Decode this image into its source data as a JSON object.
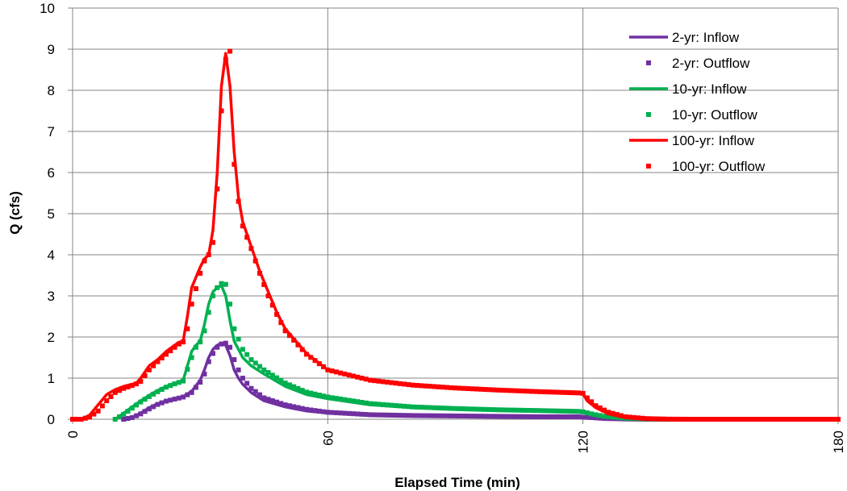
{
  "chart_data": {
    "type": "line",
    "title": "",
    "xlabel": "Elapsed Time (min)",
    "ylabel": "Q (cfs)",
    "xlim": [
      0,
      180
    ],
    "ylim": [
      0,
      10
    ],
    "xticks": [
      0,
      60,
      120,
      180
    ],
    "yticks": [
      0,
      1,
      2,
      3,
      4,
      5,
      6,
      7,
      8,
      9,
      10
    ],
    "grid": true,
    "legend_position": "top-right",
    "legend": [
      "2-yr: Inflow",
      "2-yr: Outflow",
      "10-yr: Inflow",
      "10-yr: Outflow",
      "100-yr: Inflow",
      "100-yr: Outflow"
    ],
    "series": [
      {
        "name": "2-yr: Inflow",
        "style": "line",
        "color": "#7030A0",
        "x": [
          12,
          14,
          16,
          18,
          20,
          22,
          24,
          26,
          28,
          30,
          31,
          32,
          33,
          34,
          35,
          36,
          37,
          38,
          39,
          40,
          42,
          45,
          50,
          55,
          60,
          70,
          80,
          90,
          100,
          110,
          119,
          120,
          122,
          125,
          130,
          135,
          140,
          180
        ],
        "values": [
          0,
          0.05,
          0.15,
          0.28,
          0.38,
          0.45,
          0.5,
          0.55,
          0.68,
          0.95,
          1.2,
          1.5,
          1.7,
          1.8,
          1.85,
          1.8,
          1.55,
          1.2,
          1.0,
          0.85,
          0.65,
          0.45,
          0.3,
          0.2,
          0.15,
          0.1,
          0.08,
          0.07,
          0.06,
          0.06,
          0.05,
          0.05,
          0.03,
          0.015,
          0.005,
          0,
          0,
          0
        ]
      },
      {
        "name": "2-yr: Outflow",
        "style": "markers",
        "color": "#7030A0",
        "x": [
          12,
          14,
          16,
          18,
          20,
          22,
          24,
          26,
          28,
          30,
          31,
          32,
          33,
          34,
          35,
          36,
          37,
          38,
          39,
          40,
          42,
          45,
          50,
          55,
          60,
          70,
          80,
          90,
          100,
          110,
          119,
          120,
          122,
          125,
          130,
          135,
          140,
          180
        ],
        "values": [
          0,
          0.04,
          0.13,
          0.25,
          0.36,
          0.44,
          0.49,
          0.54,
          0.65,
          0.9,
          1.1,
          1.4,
          1.6,
          1.75,
          1.83,
          1.85,
          1.75,
          1.45,
          1.2,
          1.0,
          0.75,
          0.52,
          0.35,
          0.24,
          0.17,
          0.11,
          0.09,
          0.08,
          0.07,
          0.06,
          0.06,
          0.05,
          0.04,
          0.02,
          0.007,
          0,
          0,
          0
        ]
      },
      {
        "name": "10-yr: Inflow",
        "style": "line",
        "color": "#00B050",
        "x": [
          10,
          12,
          14,
          16,
          18,
          20,
          22,
          24,
          26,
          28,
          29,
          30,
          31,
          32,
          33,
          34,
          35,
          36,
          37,
          38,
          40,
          42,
          45,
          50,
          55,
          60,
          70,
          80,
          90,
          100,
          110,
          119,
          120,
          122,
          125,
          130,
          135,
          140,
          180
        ],
        "values": [
          0,
          0.15,
          0.3,
          0.45,
          0.58,
          0.7,
          0.8,
          0.88,
          0.95,
          1.65,
          1.8,
          1.9,
          2.3,
          2.8,
          3.1,
          3.2,
          3.25,
          3.0,
          2.4,
          1.9,
          1.5,
          1.3,
          1.1,
          0.8,
          0.6,
          0.5,
          0.35,
          0.28,
          0.24,
          0.22,
          0.2,
          0.18,
          0.17,
          0.1,
          0.05,
          0.015,
          0.003,
          0,
          0
        ]
      },
      {
        "name": "10-yr: Outflow",
        "style": "markers",
        "color": "#00B050",
        "x": [
          10,
          12,
          14,
          16,
          18,
          20,
          22,
          24,
          26,
          28,
          29,
          30,
          31,
          32,
          33,
          34,
          35,
          36,
          37,
          38,
          40,
          42,
          45,
          50,
          55,
          60,
          70,
          80,
          90,
          100,
          110,
          119,
          120,
          122,
          125,
          130,
          135,
          140,
          180
        ],
        "values": [
          0,
          0.12,
          0.27,
          0.42,
          0.55,
          0.67,
          0.78,
          0.86,
          0.93,
          1.5,
          1.75,
          1.88,
          2.15,
          2.6,
          3.0,
          3.2,
          3.3,
          3.28,
          2.8,
          2.2,
          1.7,
          1.45,
          1.2,
          0.88,
          0.66,
          0.54,
          0.38,
          0.3,
          0.26,
          0.23,
          0.21,
          0.19,
          0.18,
          0.13,
          0.07,
          0.025,
          0.006,
          0,
          0
        ]
      },
      {
        "name": "100-yr: Inflow",
        "style": "line",
        "color": "#FF0000",
        "x": [
          0,
          2,
          4,
          6,
          8,
          10,
          12,
          14,
          15,
          16,
          18,
          20,
          22,
          24,
          25,
          26,
          27,
          28,
          30,
          31,
          32,
          33,
          34,
          35,
          36,
          37,
          38,
          39,
          40,
          42,
          44,
          46,
          48,
          50,
          55,
          60,
          70,
          80,
          90,
          100,
          110,
          119,
          120,
          121,
          123,
          126,
          130,
          135,
          140,
          145,
          180
        ],
        "values": [
          0,
          0,
          0.1,
          0.35,
          0.6,
          0.72,
          0.8,
          0.85,
          0.88,
          1.0,
          1.3,
          1.45,
          1.65,
          1.8,
          1.87,
          1.9,
          2.5,
          3.2,
          3.7,
          3.9,
          4.0,
          4.6,
          6.0,
          8.1,
          8.9,
          8.1,
          6.5,
          5.4,
          4.8,
          4.2,
          3.6,
          3.1,
          2.6,
          2.2,
          1.6,
          1.2,
          0.95,
          0.82,
          0.75,
          0.7,
          0.66,
          0.63,
          0.62,
          0.45,
          0.28,
          0.13,
          0.04,
          0.01,
          0,
          0,
          0
        ]
      },
      {
        "name": "100-yr: Outflow",
        "style": "markers",
        "color": "#FF0000",
        "x": [
          0,
          2,
          4,
          6,
          8,
          10,
          12,
          14,
          15,
          16,
          18,
          20,
          22,
          24,
          25,
          26,
          27,
          28,
          30,
          31,
          32,
          33,
          34,
          35,
          36,
          37,
          38,
          39,
          40,
          42,
          44,
          46,
          48,
          50,
          55,
          60,
          70,
          80,
          90,
          100,
          110,
          119,
          120,
          121,
          123,
          126,
          130,
          135,
          140,
          145,
          180
        ],
        "values": [
          0,
          0,
          0.05,
          0.2,
          0.45,
          0.65,
          0.75,
          0.82,
          0.86,
          0.92,
          1.2,
          1.4,
          1.58,
          1.75,
          1.83,
          1.88,
          2.2,
          2.8,
          3.55,
          3.85,
          4.0,
          4.3,
          5.6,
          7.5,
          8.75,
          8.95,
          6.2,
          5.3,
          4.7,
          4.15,
          3.55,
          3.0,
          2.55,
          2.15,
          1.58,
          1.2,
          0.95,
          0.83,
          0.76,
          0.71,
          0.67,
          0.64,
          0.63,
          0.52,
          0.33,
          0.17,
          0.06,
          0.015,
          0.003,
          0,
          0
        ]
      }
    ]
  }
}
